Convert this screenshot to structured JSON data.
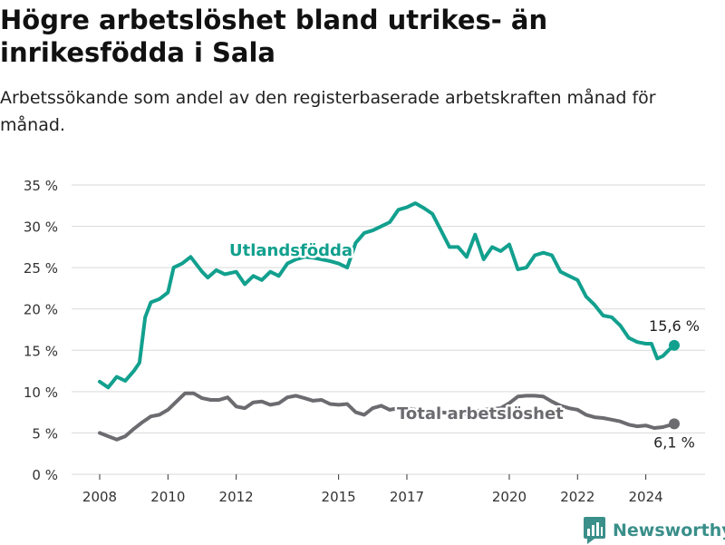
{
  "header": {
    "title": "Högre arbetslöshet bland utrikes- än inrikesfödda i Sala",
    "subtitle": "Arbetssökande som andel av den registerbaserade arbetskraften månad för månad."
  },
  "brand": {
    "name": "Newsworthy"
  },
  "chart_data": {
    "type": "line",
    "y_unit": "%",
    "ylim": [
      0,
      35
    ],
    "y_ticks": [
      "0 %",
      "5 %",
      "10 %",
      "15 %",
      "20 %",
      "25 %",
      "30 %",
      "35 %"
    ],
    "x_ticks": [
      "2008",
      "2010",
      "2012",
      "2015",
      "2017",
      "2020",
      "2022",
      "2024"
    ],
    "grid": true,
    "series": [
      {
        "name": "Utlandsfödda",
        "color": "#12a08e",
        "end_label": "15,6 %",
        "points": [
          [
            "2008-01",
            11.2
          ],
          [
            "2008-04",
            10.5
          ],
          [
            "2008-07",
            11.8
          ],
          [
            "2008-10",
            11.3
          ],
          [
            "2009-01",
            12.5
          ],
          [
            "2009-03",
            13.5
          ],
          [
            "2009-05",
            19.0
          ],
          [
            "2009-07",
            20.8
          ],
          [
            "2009-10",
            21.2
          ],
          [
            "2010-01",
            22.0
          ],
          [
            "2010-03",
            25.0
          ],
          [
            "2010-06",
            25.5
          ],
          [
            "2010-09",
            26.3
          ],
          [
            "2011-01",
            24.5
          ],
          [
            "2011-03",
            23.8
          ],
          [
            "2011-06",
            24.7
          ],
          [
            "2011-09",
            24.2
          ],
          [
            "2012-01",
            24.5
          ],
          [
            "2012-04",
            23.0
          ],
          [
            "2012-07",
            24.0
          ],
          [
            "2012-10",
            23.5
          ],
          [
            "2013-01",
            24.5
          ],
          [
            "2013-04",
            24.0
          ],
          [
            "2013-07",
            25.5
          ],
          [
            "2013-10",
            26.0
          ],
          [
            "2014-01",
            26.3
          ],
          [
            "2014-04",
            26.2
          ],
          [
            "2014-07",
            26.0
          ],
          [
            "2014-10",
            25.8
          ],
          [
            "2015-01",
            25.5
          ],
          [
            "2015-04",
            25.0
          ],
          [
            "2015-07",
            28.0
          ],
          [
            "2015-10",
            29.2
          ],
          [
            "2016-01",
            29.5
          ],
          [
            "2016-04",
            30.0
          ],
          [
            "2016-07",
            30.5
          ],
          [
            "2016-10",
            32.0
          ],
          [
            "2017-01",
            32.3
          ],
          [
            "2017-04",
            32.8
          ],
          [
            "2017-07",
            32.2
          ],
          [
            "2017-10",
            31.5
          ],
          [
            "2018-01",
            29.5
          ],
          [
            "2018-04",
            27.5
          ],
          [
            "2018-07",
            27.5
          ],
          [
            "2018-10",
            26.3
          ],
          [
            "2019-01",
            29.0
          ],
          [
            "2019-04",
            26.0
          ],
          [
            "2019-07",
            27.5
          ],
          [
            "2019-10",
            27.0
          ],
          [
            "2020-01",
            27.8
          ],
          [
            "2020-04",
            24.8
          ],
          [
            "2020-07",
            25.0
          ],
          [
            "2020-10",
            26.5
          ],
          [
            "2021-01",
            26.8
          ],
          [
            "2021-04",
            26.5
          ],
          [
            "2021-07",
            24.5
          ],
          [
            "2021-10",
            24.0
          ],
          [
            "2022-01",
            23.5
          ],
          [
            "2022-04",
            21.5
          ],
          [
            "2022-07",
            20.5
          ],
          [
            "2022-10",
            19.2
          ],
          [
            "2023-01",
            19.0
          ],
          [
            "2023-04",
            18.0
          ],
          [
            "2023-07",
            16.5
          ],
          [
            "2023-10",
            16.0
          ],
          [
            "2024-01",
            15.8
          ],
          [
            "2024-03",
            15.8
          ],
          [
            "2024-05",
            14.0
          ],
          [
            "2024-07",
            14.3
          ],
          [
            "2024-09",
            15.0
          ],
          [
            "2024-11",
            15.6
          ]
        ]
      },
      {
        "name": "Total arbetslöshet",
        "color": "#6b6b70",
        "end_label": "6,1 %",
        "points": [
          [
            "2008-01",
            5.0
          ],
          [
            "2008-04",
            4.6
          ],
          [
            "2008-07",
            4.2
          ],
          [
            "2008-10",
            4.6
          ],
          [
            "2009-01",
            5.5
          ],
          [
            "2009-04",
            6.3
          ],
          [
            "2009-07",
            7.0
          ],
          [
            "2009-10",
            7.2
          ],
          [
            "2010-01",
            7.8
          ],
          [
            "2010-04",
            8.8
          ],
          [
            "2010-07",
            9.8
          ],
          [
            "2010-10",
            9.8
          ],
          [
            "2011-01",
            9.2
          ],
          [
            "2011-04",
            9.0
          ],
          [
            "2011-07",
            9.0
          ],
          [
            "2011-10",
            9.3
          ],
          [
            "2012-01",
            8.2
          ],
          [
            "2012-04",
            8.0
          ],
          [
            "2012-07",
            8.7
          ],
          [
            "2012-10",
            8.8
          ],
          [
            "2013-01",
            8.4
          ],
          [
            "2013-04",
            8.6
          ],
          [
            "2013-07",
            9.3
          ],
          [
            "2013-10",
            9.5
          ],
          [
            "2014-01",
            9.2
          ],
          [
            "2014-04",
            8.9
          ],
          [
            "2014-07",
            9.0
          ],
          [
            "2014-10",
            8.5
          ],
          [
            "2015-01",
            8.4
          ],
          [
            "2015-04",
            8.5
          ],
          [
            "2015-07",
            7.5
          ],
          [
            "2015-10",
            7.2
          ],
          [
            "2016-01",
            8.0
          ],
          [
            "2016-04",
            8.3
          ],
          [
            "2016-07",
            7.8
          ],
          [
            "2016-10",
            8.0
          ],
          [
            "2017-01",
            8.0
          ],
          [
            "2017-04",
            7.8
          ],
          [
            "2017-07",
            7.8
          ],
          [
            "2017-10",
            7.6
          ],
          [
            "2018-01",
            7.5
          ],
          [
            "2018-04",
            7.4
          ],
          [
            "2018-07",
            7.5
          ],
          [
            "2018-10",
            7.3
          ],
          [
            "2019-01",
            7.6
          ],
          [
            "2019-04",
            7.8
          ],
          [
            "2019-07",
            7.9
          ],
          [
            "2019-10",
            8.0
          ],
          [
            "2020-01",
            8.6
          ],
          [
            "2020-04",
            9.4
          ],
          [
            "2020-07",
            9.5
          ],
          [
            "2020-10",
            9.5
          ],
          [
            "2021-01",
            9.4
          ],
          [
            "2021-04",
            8.8
          ],
          [
            "2021-07",
            8.3
          ],
          [
            "2021-10",
            8.0
          ],
          [
            "2022-01",
            7.8
          ],
          [
            "2022-04",
            7.2
          ],
          [
            "2022-07",
            6.9
          ],
          [
            "2022-10",
            6.8
          ],
          [
            "2023-01",
            6.6
          ],
          [
            "2023-04",
            6.4
          ],
          [
            "2023-07",
            6.0
          ],
          [
            "2023-10",
            5.8
          ],
          [
            "2024-01",
            5.9
          ],
          [
            "2024-04",
            5.6
          ],
          [
            "2024-07",
            5.7
          ],
          [
            "2024-11",
            6.1
          ]
        ]
      }
    ]
  }
}
